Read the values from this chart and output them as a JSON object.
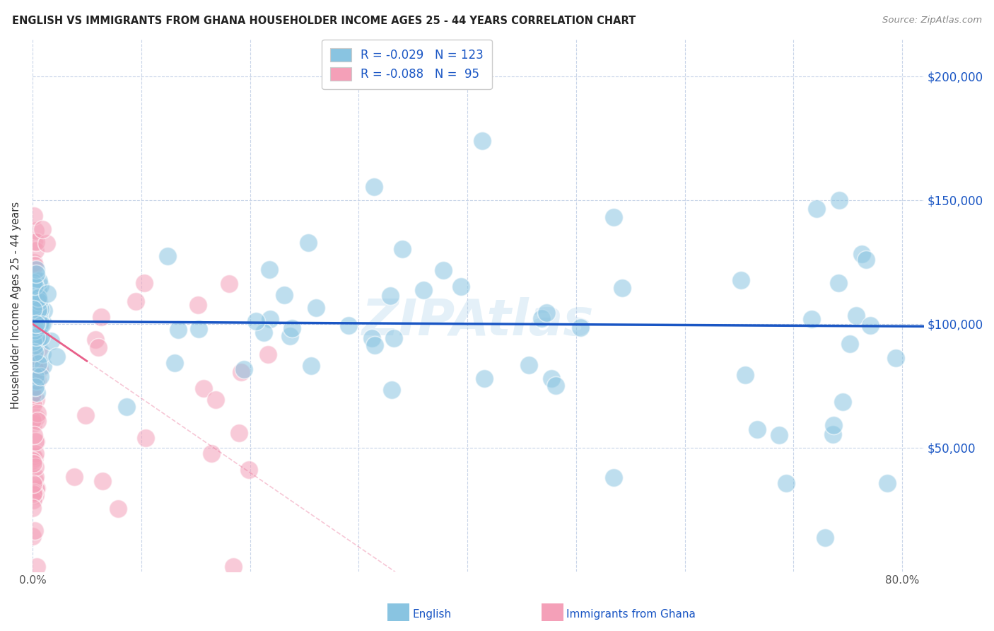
{
  "title": "ENGLISH VS IMMIGRANTS FROM GHANA HOUSEHOLDER INCOME AGES 25 - 44 YEARS CORRELATION CHART",
  "source": "Source: ZipAtlas.com",
  "ylabel": "Householder Income Ages 25 - 44 years",
  "ytick_labels": [
    "$50,000",
    "$100,000",
    "$150,000",
    "$200,000"
  ],
  "ytick_values": [
    50000,
    100000,
    150000,
    200000
  ],
  "legend_label1": "English",
  "legend_label2": "Immigrants from Ghana",
  "R1": -0.029,
  "N1": 123,
  "R2": -0.088,
  "N2": 95,
  "color_english": "#89c4e1",
  "color_ghana": "#f4a0b8",
  "color_english_line": "#1a56c4",
  "color_ghana_line": "#e8608a",
  "bg_color": "#ffffff",
  "grid_color": "#c8d4e8",
  "watermark": "ZIPAtlas",
  "xlim": [
    0.0,
    0.82
  ],
  "ylim": [
    0,
    215000
  ]
}
